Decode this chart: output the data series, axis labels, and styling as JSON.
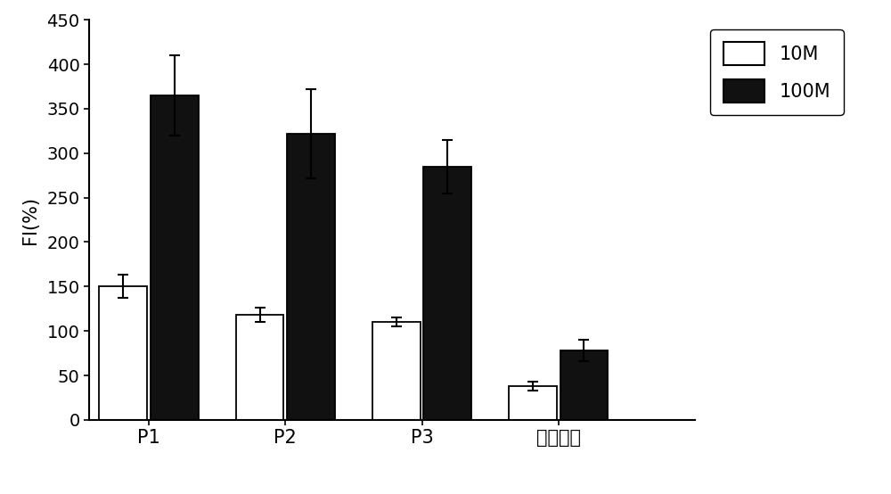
{
  "categories": [
    "P1",
    "P2",
    "P3",
    "阴性对照"
  ],
  "values_10M": [
    150,
    118,
    110,
    38
  ],
  "values_100M": [
    365,
    322,
    285,
    78
  ],
  "errors_10M": [
    13,
    8,
    5,
    5
  ],
  "errors_100M": [
    45,
    50,
    30,
    12
  ],
  "bar_color_10M": "#ffffff",
  "bar_color_100M": "#111111",
  "bar_edgecolor": "#000000",
  "ylabel": "FI(%)",
  "ylim": [
    0,
    450
  ],
  "yticks": [
    0,
    50,
    100,
    150,
    200,
    250,
    300,
    350,
    400,
    450
  ],
  "legend_labels": [
    "10M",
    "100M"
  ],
  "bar_width": 0.28,
  "group_positions": [
    0.35,
    1.15,
    1.95,
    2.75
  ],
  "figsize": [
    10.0,
    5.54
  ],
  "dpi": 100,
  "background_color": "#ffffff",
  "tick_labelsize": 14,
  "ylabel_fontsize": 15,
  "legend_fontsize": 15,
  "xtick_labelsize": 15
}
